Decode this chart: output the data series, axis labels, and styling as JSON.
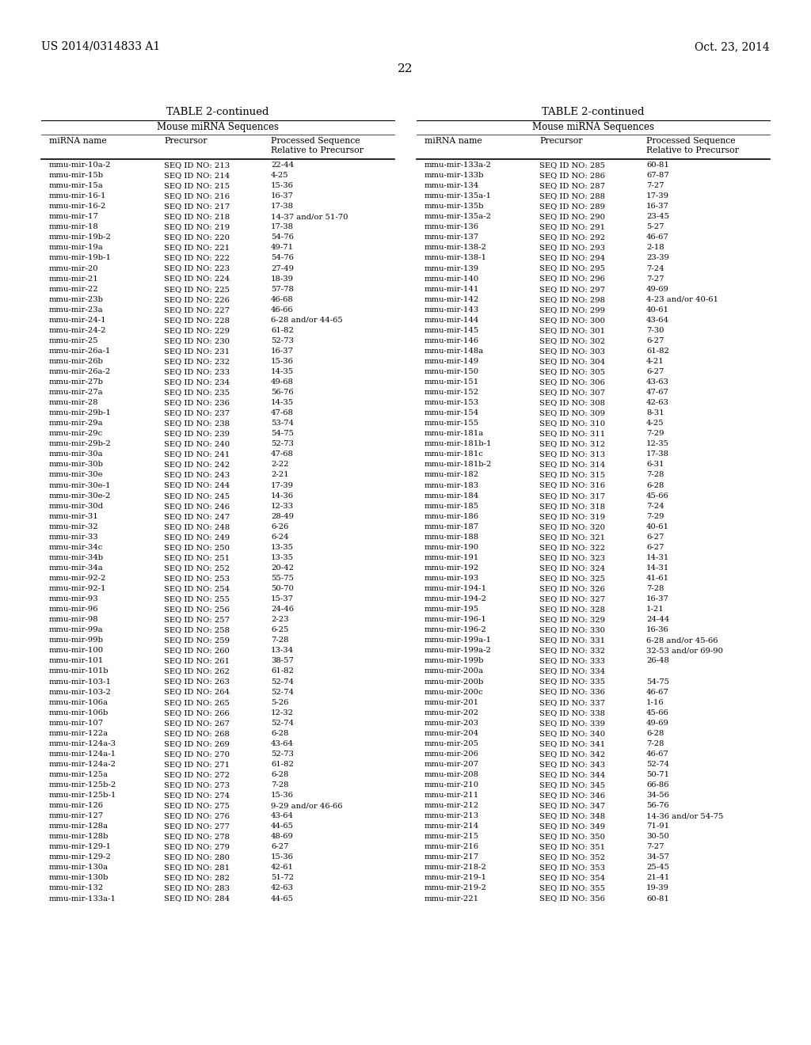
{
  "header_left": "US 2014/0314833 A1",
  "header_right": "Oct. 23, 2014",
  "page_number": "22",
  "table_title": "TABLE 2-continued",
  "table_subtitle": "Mouse miRNA Sequences",
  "col_headers": [
    "miRNA name",
    "Precursor",
    "Processed Sequence\nRelative to Precursor"
  ],
  "left_table": [
    [
      "mmu-mir-10a-2",
      "SEQ ID NO: 213",
      "22-44"
    ],
    [
      "mmu-mir-15b",
      "SEQ ID NO: 214",
      "4-25"
    ],
    [
      "mmu-mir-15a",
      "SEQ ID NO: 215",
      "15-36"
    ],
    [
      "mmu-mir-16-1",
      "SEQ ID NO: 216",
      "16-37"
    ],
    [
      "mmu-mir-16-2",
      "SEQ ID NO: 217",
      "17-38"
    ],
    [
      "mmu-mir-17",
      "SEQ ID NO: 218",
      "14-37 and/or 51-70"
    ],
    [
      "mmu-mir-18",
      "SEQ ID NO: 219",
      "17-38"
    ],
    [
      "mmu-mir-19b-2",
      "SEQ ID NO: 220",
      "54-76"
    ],
    [
      "mmu-mir-19a",
      "SEQ ID NO: 221",
      "49-71"
    ],
    [
      "mmu-mir-19b-1",
      "SEQ ID NO: 222",
      "54-76"
    ],
    [
      "mmu-mir-20",
      "SEQ ID NO: 223",
      "27-49"
    ],
    [
      "mmu-mir-21",
      "SEQ ID NO: 224",
      "18-39"
    ],
    [
      "mmu-mir-22",
      "SEQ ID NO: 225",
      "57-78"
    ],
    [
      "mmu-mir-23b",
      "SEQ ID NO: 226",
      "46-68"
    ],
    [
      "mmu-mir-23a",
      "SEQ ID NO: 227",
      "46-66"
    ],
    [
      "mmu-mir-24-1",
      "SEQ ID NO: 228",
      "6-28 and/or 44-65"
    ],
    [
      "mmu-mir-24-2",
      "SEQ ID NO: 229",
      "61-82"
    ],
    [
      "mmu-mir-25",
      "SEQ ID NO: 230",
      "52-73"
    ],
    [
      "mmu-mir-26a-1",
      "SEQ ID NO: 231",
      "16-37"
    ],
    [
      "mmu-mir-26b",
      "SEQ ID NO: 232",
      "15-36"
    ],
    [
      "mmu-mir-26a-2",
      "SEQ ID NO: 233",
      "14-35"
    ],
    [
      "mmu-mir-27b",
      "SEQ ID NO: 234",
      "49-68"
    ],
    [
      "mmu-mir-27a",
      "SEQ ID NO: 235",
      "56-76"
    ],
    [
      "mmu-mir-28",
      "SEQ ID NO: 236",
      "14-35"
    ],
    [
      "mmu-mir-29b-1",
      "SEQ ID NO: 237",
      "47-68"
    ],
    [
      "mmu-mir-29a",
      "SEQ ID NO: 238",
      "53-74"
    ],
    [
      "mmu-mir-29c",
      "SEQ ID NO: 239",
      "54-75"
    ],
    [
      "mmu-mir-29b-2",
      "SEQ ID NO: 240",
      "52-73"
    ],
    [
      "mmu-mir-30a",
      "SEQ ID NO: 241",
      "47-68"
    ],
    [
      "mmu-mir-30b",
      "SEQ ID NO: 242",
      "2-22"
    ],
    [
      "mmu-mir-30e",
      "SEQ ID NO: 243",
      "2-21"
    ],
    [
      "mmu-mir-30e-1",
      "SEQ ID NO: 244",
      "17-39"
    ],
    [
      "mmu-mir-30e-2",
      "SEQ ID NO: 245",
      "14-36"
    ],
    [
      "mmu-mir-30d",
      "SEQ ID NO: 246",
      "12-33"
    ],
    [
      "mmu-mir-31",
      "SEQ ID NO: 247",
      "28-49"
    ],
    [
      "mmu-mir-32",
      "SEQ ID NO: 248",
      "6-26"
    ],
    [
      "mmu-mir-33",
      "SEQ ID NO: 249",
      "6-24"
    ],
    [
      "mmu-mir-34c",
      "SEQ ID NO: 250",
      "13-35"
    ],
    [
      "mmu-mir-34b",
      "SEQ ID NO: 251",
      "13-35"
    ],
    [
      "mmu-mir-34a",
      "SEQ ID NO: 252",
      "20-42"
    ],
    [
      "mmu-mir-92-2",
      "SEQ ID NO: 253",
      "55-75"
    ],
    [
      "mmu-mir-92-1",
      "SEQ ID NO: 254",
      "50-70"
    ],
    [
      "mmu-mir-93",
      "SEQ ID NO: 255",
      "15-37"
    ],
    [
      "mmu-mir-96",
      "SEQ ID NO: 256",
      "24-46"
    ],
    [
      "mmu-mir-98",
      "SEQ ID NO: 257",
      "2-23"
    ],
    [
      "mmu-mir-99a",
      "SEQ ID NO: 258",
      "6-25"
    ],
    [
      "mmu-mir-99b",
      "SEQ ID NO: 259",
      "7-28"
    ],
    [
      "mmu-mir-100",
      "SEQ ID NO: 260",
      "13-34"
    ],
    [
      "mmu-mir-101",
      "SEQ ID NO: 261",
      "38-57"
    ],
    [
      "mmu-mir-101b",
      "SEQ ID NO: 262",
      "61-82"
    ],
    [
      "mmu-mir-103-1",
      "SEQ ID NO: 263",
      "52-74"
    ],
    [
      "mmu-mir-103-2",
      "SEQ ID NO: 264",
      "52-74"
    ],
    [
      "mmu-mir-106a",
      "SEQ ID NO: 265",
      "5-26"
    ],
    [
      "mmu-mir-106b",
      "SEQ ID NO: 266",
      "12-32"
    ],
    [
      "mmu-mir-107",
      "SEQ ID NO: 267",
      "52-74"
    ],
    [
      "mmu-mir-122a",
      "SEQ ID NO: 268",
      "6-28"
    ],
    [
      "mmu-mir-124a-3",
      "SEQ ID NO: 269",
      "43-64"
    ],
    [
      "mmu-mir-124a-1",
      "SEQ ID NO: 270",
      "52-73"
    ],
    [
      "mmu-mir-124a-2",
      "SEQ ID NO: 271",
      "61-82"
    ],
    [
      "mmu-mir-125a",
      "SEQ ID NO: 272",
      "6-28"
    ],
    [
      "mmu-mir-125b-2",
      "SEQ ID NO: 273",
      "7-28"
    ],
    [
      "mmu-mir-125b-1",
      "SEQ ID NO: 274",
      "15-36"
    ],
    [
      "mmu-mir-126",
      "SEQ ID NO: 275",
      "9-29 and/or 46-66"
    ],
    [
      "mmu-mir-127",
      "SEQ ID NO: 276",
      "43-64"
    ],
    [
      "mmu-mir-128a",
      "SEQ ID NO: 277",
      "44-65"
    ],
    [
      "mmu-mir-128b",
      "SEQ ID NO: 278",
      "48-69"
    ],
    [
      "mmu-mir-129-1",
      "SEQ ID NO: 279",
      "6-27"
    ],
    [
      "mmu-mir-129-2",
      "SEQ ID NO: 280",
      "15-36"
    ],
    [
      "mmu-mir-130a",
      "SEQ ID NO: 281",
      "42-61"
    ],
    [
      "mmu-mir-130b",
      "SEQ ID NO: 282",
      "51-72"
    ],
    [
      "mmu-mir-132",
      "SEQ ID NO: 283",
      "42-63"
    ],
    [
      "mmu-mir-133a-1",
      "SEQ ID NO: 284",
      "44-65"
    ]
  ],
  "right_table": [
    [
      "mmu-mir-133a-2",
      "SEQ ID NO: 285",
      "60-81"
    ],
    [
      "mmu-mir-133b",
      "SEQ ID NO: 286",
      "67-87"
    ],
    [
      "mmu-mir-134",
      "SEQ ID NO: 287",
      "7-27"
    ],
    [
      "mmu-mir-135a-1",
      "SEQ ID NO: 288",
      "17-39"
    ],
    [
      "mmu-mir-135b",
      "SEQ ID NO: 289",
      "16-37"
    ],
    [
      "mmu-mir-135a-2",
      "SEQ ID NO: 290",
      "23-45"
    ],
    [
      "mmu-mir-136",
      "SEQ ID NO: 291",
      "5-27"
    ],
    [
      "mmu-mir-137",
      "SEQ ID NO: 292",
      "46-67"
    ],
    [
      "mmu-mir-138-2",
      "SEQ ID NO: 293",
      "2-18"
    ],
    [
      "mmu-mir-138-1",
      "SEQ ID NO: 294",
      "23-39"
    ],
    [
      "mmu-mir-139",
      "SEQ ID NO: 295",
      "7-24"
    ],
    [
      "mmu-mir-140",
      "SEQ ID NO: 296",
      "7-27"
    ],
    [
      "mmu-mir-141",
      "SEQ ID NO: 297",
      "49-69"
    ],
    [
      "mmu-mir-142",
      "SEQ ID NO: 298",
      "4-23 and/or 40-61"
    ],
    [
      "mmu-mir-143",
      "SEQ ID NO: 299",
      "40-61"
    ],
    [
      "mmu-mir-144",
      "SEQ ID NO: 300",
      "43-64"
    ],
    [
      "mmu-mir-145",
      "SEQ ID NO: 301",
      "7-30"
    ],
    [
      "mmu-mir-146",
      "SEQ ID NO: 302",
      "6-27"
    ],
    [
      "mmu-mir-148a",
      "SEQ ID NO: 303",
      "61-82"
    ],
    [
      "mmu-mir-149",
      "SEQ ID NO: 304",
      "4-21"
    ],
    [
      "mmu-mir-150",
      "SEQ ID NO: 305",
      "6-27"
    ],
    [
      "mmu-mir-151",
      "SEQ ID NO: 306",
      "43-63"
    ],
    [
      "mmu-mir-152",
      "SEQ ID NO: 307",
      "47-67"
    ],
    [
      "mmu-mir-153",
      "SEQ ID NO: 308",
      "42-63"
    ],
    [
      "mmu-mir-154",
      "SEQ ID NO: 309",
      "8-31"
    ],
    [
      "mmu-mir-155",
      "SEQ ID NO: 310",
      "4-25"
    ],
    [
      "mmu-mir-181a",
      "SEQ ID NO: 311",
      "7-29"
    ],
    [
      "mmu-mir-181b-1",
      "SEQ ID NO: 312",
      "12-35"
    ],
    [
      "mmu-mir-181c",
      "SEQ ID NO: 313",
      "17-38"
    ],
    [
      "mmu-mir-181b-2",
      "SEQ ID NO: 314",
      "6-31"
    ],
    [
      "mmu-mir-182",
      "SEQ ID NO: 315",
      "7-28"
    ],
    [
      "mmu-mir-183",
      "SEQ ID NO: 316",
      "6-28"
    ],
    [
      "mmu-mir-184",
      "SEQ ID NO: 317",
      "45-66"
    ],
    [
      "mmu-mir-185",
      "SEQ ID NO: 318",
      "7-24"
    ],
    [
      "mmu-mir-186",
      "SEQ ID NO: 319",
      "7-29"
    ],
    [
      "mmu-mir-187",
      "SEQ ID NO: 320",
      "40-61"
    ],
    [
      "mmu-mir-188",
      "SEQ ID NO: 321",
      "6-27"
    ],
    [
      "mmu-mir-190",
      "SEQ ID NO: 322",
      "6-27"
    ],
    [
      "mmu-mir-191",
      "SEQ ID NO: 323",
      "14-31"
    ],
    [
      "mmu-mir-192",
      "SEQ ID NO: 324",
      "14-31"
    ],
    [
      "mmu-mir-193",
      "SEQ ID NO: 325",
      "41-61"
    ],
    [
      "mmu-mir-194-1",
      "SEQ ID NO: 326",
      "7-28"
    ],
    [
      "mmu-mir-194-2",
      "SEQ ID NO: 327",
      "16-37"
    ],
    [
      "mmu-mir-195",
      "SEQ ID NO: 328",
      "1-21"
    ],
    [
      "mmu-mir-196-1",
      "SEQ ID NO: 329",
      "24-44"
    ],
    [
      "mmu-mir-196-2",
      "SEQ ID NO: 330",
      "16-36"
    ],
    [
      "mmu-mir-199a-1",
      "SEQ ID NO: 331",
      "6-28 and/or 45-66"
    ],
    [
      "mmu-mir-199a-2",
      "SEQ ID NO: 332",
      "32-53 and/or 69-90"
    ],
    [
      "mmu-mir-199b",
      "SEQ ID NO: 333",
      "26-48"
    ],
    [
      "mmu-mir-200a",
      "SEQ ID NO: 334",
      ""
    ],
    [
      "mmu-mir-200b",
      "SEQ ID NO: 335",
      "54-75"
    ],
    [
      "mmu-mir-200c",
      "SEQ ID NO: 336",
      "46-67"
    ],
    [
      "mmu-mir-201",
      "SEQ ID NO: 337",
      "1-16"
    ],
    [
      "mmu-mir-202",
      "SEQ ID NO: 338",
      "45-66"
    ],
    [
      "mmu-mir-203",
      "SEQ ID NO: 339",
      "49-69"
    ],
    [
      "mmu-mir-204",
      "SEQ ID NO: 340",
      "6-28"
    ],
    [
      "mmu-mir-205",
      "SEQ ID NO: 341",
      "7-28"
    ],
    [
      "mmu-mir-206",
      "SEQ ID NO: 342",
      "46-67"
    ],
    [
      "mmu-mir-207",
      "SEQ ID NO: 343",
      "52-74"
    ],
    [
      "mmu-mir-208",
      "SEQ ID NO: 344",
      "50-71"
    ],
    [
      "mmu-mir-210",
      "SEQ ID NO: 345",
      "66-86"
    ],
    [
      "mmu-mir-211",
      "SEQ ID NO: 346",
      "34-56"
    ],
    [
      "mmu-mir-212",
      "SEQ ID NO: 347",
      "56-76"
    ],
    [
      "mmu-mir-213",
      "SEQ ID NO: 348",
      "14-36 and/or 54-75"
    ],
    [
      "mmu-mir-214",
      "SEQ ID NO: 349",
      "71-91"
    ],
    [
      "mmu-mir-215",
      "SEQ ID NO: 350",
      "30-50"
    ],
    [
      "mmu-mir-216",
      "SEQ ID NO: 351",
      "7-27"
    ],
    [
      "mmu-mir-217",
      "SEQ ID NO: 352",
      "34-57"
    ],
    [
      "mmu-mir-218-2",
      "SEQ ID NO: 353",
      "25-45"
    ],
    [
      "mmu-mir-219-1",
      "SEQ ID NO: 354",
      "21-41"
    ],
    [
      "mmu-mir-219-2",
      "SEQ ID NO: 355",
      "19-39"
    ],
    [
      "mmu-mir-221",
      "SEQ ID NO: 356",
      "60-81"
    ]
  ],
  "bg_color": "#ffffff",
  "text_color": "#000000",
  "header_fontsize": 10,
  "pagenum_fontsize": 11,
  "title_fontsize": 9.5,
  "subtitle_fontsize": 8.5,
  "col_header_fontsize": 7.8,
  "data_fontsize": 7.2,
  "fig_width": 10.24,
  "fig_height": 13.2,
  "dpi": 100
}
